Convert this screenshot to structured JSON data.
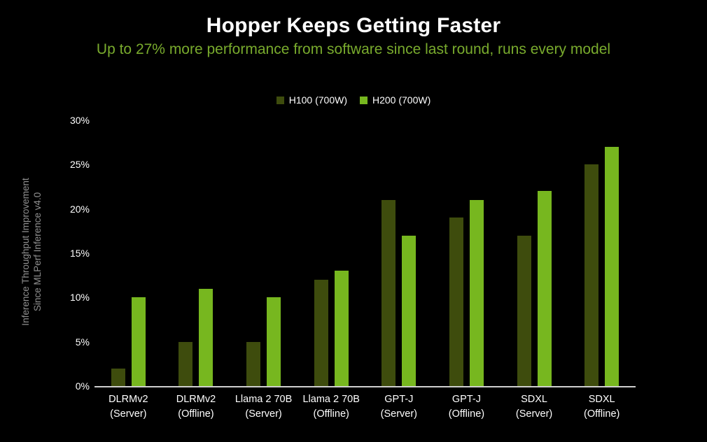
{
  "page": {
    "title": "Hopper Keeps Getting Faster",
    "subtitle": "Up to 27% more performance from software since last round, runs every model"
  },
  "colors": {
    "background": "#000000",
    "title": "#ffffff",
    "subtitle": "#79ab2d",
    "axis_line": "#cfcfcf",
    "tick_label": "#ffffff",
    "y_axis_label": "#8f8f8f",
    "h100_bar": "#3e4c0d",
    "h200_bar": "#77b71f"
  },
  "chart_data": {
    "type": "bar",
    "title": "Hopper Keeps Getting Faster",
    "subtitle": "Up to 27% more performance from software since last round, runs every model",
    "categories": [
      "DLRMv2 (Server)",
      "DLRMv2 (Offline)",
      "Llama 2 70B (Server)",
      "Llama 2 70B (Offline)",
      "GPT-J (Server)",
      "GPT-J (Offline)",
      "SDXL (Server)",
      "SDXL (Offline)"
    ],
    "category_lines": [
      [
        "DLRMv2",
        "(Server)"
      ],
      [
        "DLRMv2",
        "(Offline)"
      ],
      [
        "Llama 2 70B",
        "(Server)"
      ],
      [
        "Llama 2 70B",
        "(Offline)"
      ],
      [
        "GPT-J",
        "(Server)"
      ],
      [
        "GPT-J",
        "(Offline)"
      ],
      [
        "SDXL",
        "(Server)"
      ],
      [
        "SDXL",
        "(Offline)"
      ]
    ],
    "series": [
      {
        "name": "H100 (700W)",
        "color": "#3e4c0d",
        "values": [
          2,
          5,
          5,
          12,
          21,
          19,
          17,
          25
        ]
      },
      {
        "name": "H200 (700W)",
        "color": "#77b71f",
        "values": [
          10,
          11,
          10,
          13,
          17,
          21,
          22,
          27
        ]
      }
    ],
    "xlabel": "",
    "ylabel": "Inference Throughput Improvement Since MLPerf Inference v4.0",
    "ylabel_lines": [
      "Inference Throughput Improvement",
      "Since MLPerf Inference v4.0"
    ],
    "ylim": [
      0,
      30
    ],
    "ytick_step": 5,
    "ytick_suffix": "%",
    "legend_position": "top-center",
    "grid": false
  }
}
